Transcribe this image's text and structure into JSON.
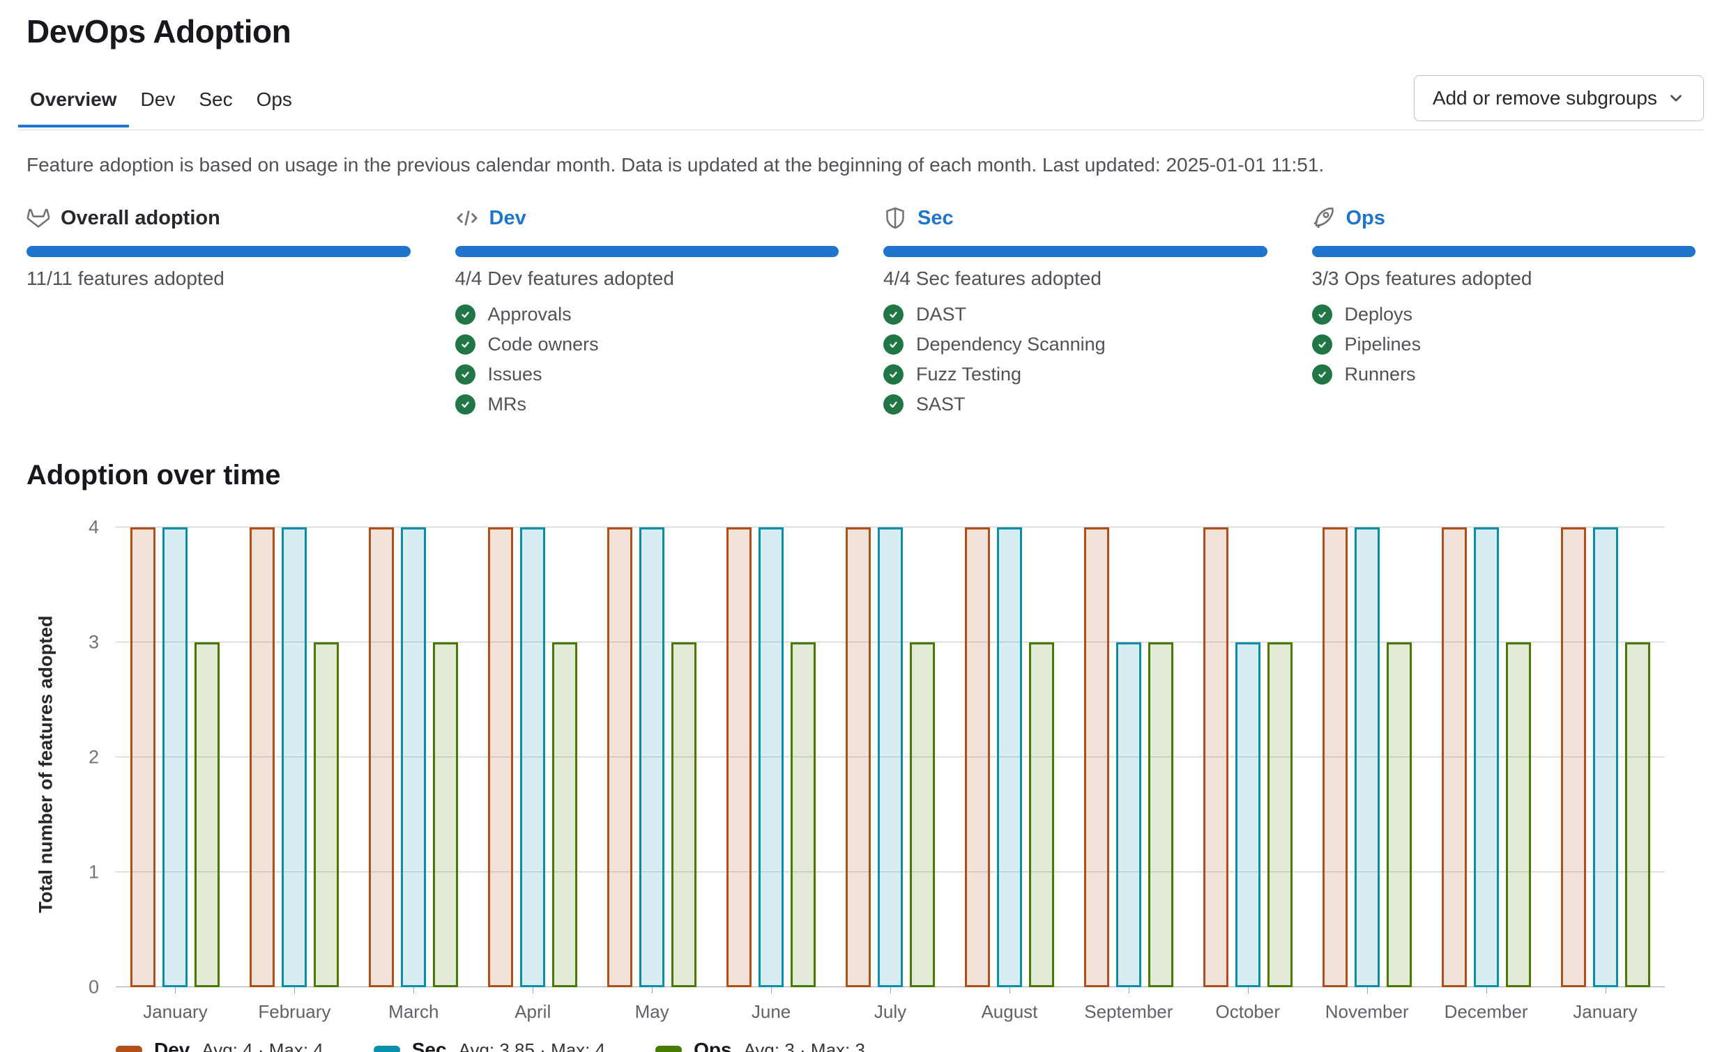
{
  "page": {
    "title": "DevOps Adoption"
  },
  "tabs": [
    {
      "label": "Overview",
      "active": true
    },
    {
      "label": "Dev",
      "active": false
    },
    {
      "label": "Sec",
      "active": false
    },
    {
      "label": "Ops",
      "active": false
    }
  ],
  "actions": {
    "add_remove_subgroups": "Add or remove subgroups"
  },
  "description": "Feature adoption is based on usage in the previous calendar month. Data is updated at the beginning of each month. Last updated: 2025-01-01 11:51.",
  "accent_color": "#1f75cb",
  "check_color": "#217645",
  "cards": [
    {
      "icon": "tanuki-icon",
      "title": "Overall adoption",
      "progress_label": "11/11 features adopted",
      "items": []
    },
    {
      "icon": "code-icon",
      "title": "Dev",
      "progress_label": "4/4 Dev features adopted",
      "items": [
        "Approvals",
        "Code owners",
        "Issues",
        "MRs"
      ]
    },
    {
      "icon": "shield-icon",
      "title": "Sec",
      "progress_label": "4/4 Sec features adopted",
      "items": [
        "DAST",
        "Dependency Scanning",
        "Fuzz Testing",
        "SAST"
      ]
    },
    {
      "icon": "rocket-icon",
      "title": "Ops",
      "progress_label": "3/3 Ops features adopted",
      "items": [
        "Deploys",
        "Pipelines",
        "Runners"
      ]
    }
  ],
  "chart_data": {
    "type": "bar",
    "title": "Adoption over time",
    "categories": [
      "January",
      "February",
      "March",
      "April",
      "May",
      "June",
      "July",
      "August",
      "September",
      "October",
      "November",
      "December",
      "January"
    ],
    "series": [
      {
        "name": "Dev",
        "color": "#b14f18",
        "fill": "rgba(177,79,24,0.16)",
        "values": [
          4,
          4,
          4,
          4,
          4,
          4,
          4,
          4,
          4,
          4,
          4,
          4,
          4
        ],
        "legend_stats": "Avg: 4 · Max: 4"
      },
      {
        "name": "Sec",
        "color": "#0a8fab",
        "fill": "rgba(10,143,171,0.16)",
        "values": [
          4,
          4,
          4,
          4,
          4,
          4,
          4,
          4,
          3,
          3,
          4,
          4,
          4
        ],
        "legend_stats": "Avg: 3.85 · Max: 4"
      },
      {
        "name": "Ops",
        "color": "#487900",
        "fill": "rgba(72,121,0,0.16)",
        "values": [
          3,
          3,
          3,
          3,
          3,
          3,
          3,
          3,
          3,
          3,
          3,
          3,
          3
        ],
        "legend_stats": "Avg: 3 · Max: 3"
      }
    ],
    "xlabel": "",
    "ylabel": "Total number of features adopted",
    "ylim": [
      0,
      4
    ],
    "yticks": [
      0,
      1,
      2,
      3,
      4
    ],
    "grid": true,
    "legend_position": "bottom"
  }
}
